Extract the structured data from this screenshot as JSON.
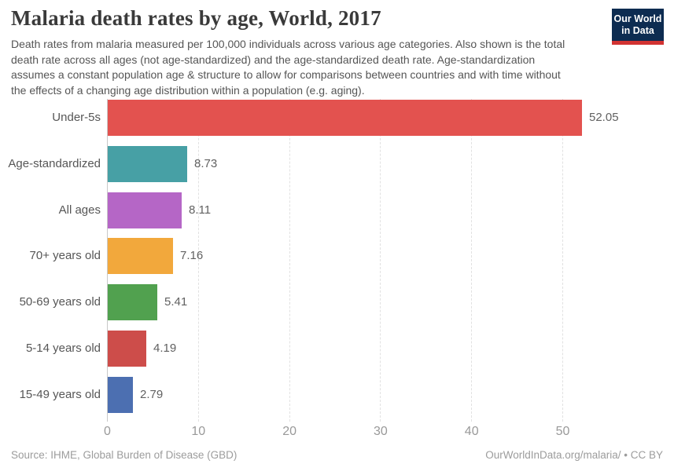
{
  "header": {
    "title": "Malaria death rates by age, World, 2017",
    "subtitle_lines": [
      "Death rates from malaria measured per 100,000 individuals across various age categories. Also shown is the total",
      "death rate across all ages (not age-standardized) and the age-standardized death rate. Age-standardization",
      "assumes a constant population age & structure to allow for comparisons between countries and with time without",
      "the effects of a changing age distribution within a population (e.g. aging)."
    ],
    "logo": {
      "line1": "Our World",
      "line2": "in Data"
    }
  },
  "chart_data": {
    "type": "bar",
    "orientation": "horizontal",
    "title": "Malaria death rates by age, World, 2017",
    "categories": [
      "Under-5s",
      "Age-standardized",
      "All ages",
      "70+ years old",
      "50-69 years old",
      "5-14 years old",
      "15-49 years old"
    ],
    "values": [
      52.05,
      8.73,
      8.11,
      7.16,
      5.41,
      4.19,
      2.79
    ],
    "value_labels": [
      "52.05",
      "8.73",
      "8.11",
      "7.16",
      "5.41",
      "4.19",
      "2.79"
    ],
    "bar_colors": [
      "#e3524f",
      "#47a0a5",
      "#b566c6",
      "#f2a83c",
      "#51a14f",
      "#cd4d4a",
      "#4c6fb1"
    ],
    "xticks": [
      0,
      10,
      20,
      30,
      40,
      50
    ],
    "xlim": [
      0,
      59
    ],
    "xlabel": "",
    "ylabel": "",
    "grid": "vertical-dashed",
    "legend": "none"
  },
  "footer": {
    "source": "Source: IHME, Global Burden of Disease (GBD)",
    "attribution": "OurWorldInData.org/malaria/ • CC BY"
  },
  "colors": {
    "background": "#ffffff",
    "logo_navy": "#0d2c51",
    "logo_red": "#d13332",
    "axis": "#c8c8c8",
    "gridline": "#e1e1e1",
    "tick_text": "#999999",
    "label_text": "#565656",
    "value_text": "#616161",
    "footer_text": "#9c9c9c"
  }
}
